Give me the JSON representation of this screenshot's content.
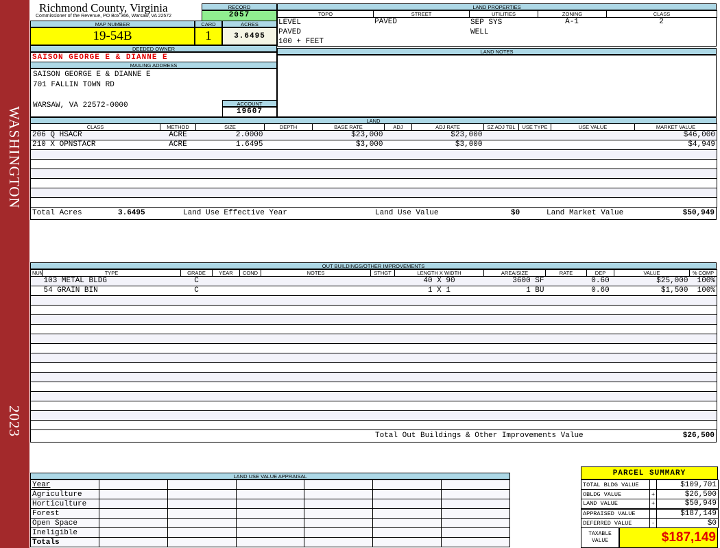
{
  "sidebar": {
    "county_label": "WASHINGTON",
    "year": "2023",
    "color": "#a3292b"
  },
  "header": {
    "title": "Richmond County, Virginia",
    "subtitle": "Commissioner of the Revenue, PO Box 366, Warsaw, VA 22572"
  },
  "record": {
    "label": "RECORD",
    "value": "2057"
  },
  "map": {
    "map_label": "MAP NUMBER",
    "map_value": "19-54B",
    "card_label": "CARD",
    "card_value": "1",
    "acres_label": "ACRES",
    "acres_value": "3.6495"
  },
  "owner": {
    "label": "DEEDED OWNER",
    "value": "SAISON GEORGE E & DIANNE E"
  },
  "mailing": {
    "label": "MAILING ADDRESS",
    "line1": "SAISON GEORGE E & DIANNE E",
    "line2": "701 FALLIN TOWN RD",
    "line3": "WARSAW, VA 22572-0000"
  },
  "account": {
    "label": "ACCOUNT",
    "value": "19607"
  },
  "land_properties": {
    "label": "LAND PROPERTIES",
    "columns": [
      "TOPO",
      "STREET",
      "UTILITIES",
      "ZONING",
      "CLASS"
    ],
    "topo": [
      "LEVEL",
      "PAVED",
      "100 + FEET"
    ],
    "street": [
      "PAVED"
    ],
    "utilities": [
      "SEP SYS",
      "WELL"
    ],
    "zoning": "A-1",
    "class": "2"
  },
  "land_notes": {
    "label": "LAND NOTES"
  },
  "land": {
    "label": "LAND",
    "columns": [
      "CLASS",
      "METHOD",
      "SIZE",
      "DEPTH",
      "BASE RATE",
      "ADJ",
      "ADJ RATE",
      "SZ ADJ TBL",
      "USE TYPE",
      "USE VALUE",
      "MARKET VALUE"
    ],
    "rows": [
      [
        "206 Q HSACR",
        "ACRE",
        "2.0000",
        "",
        "$23,000",
        "",
        "$23,000",
        "",
        "",
        "",
        "$46,000"
      ],
      [
        "210 X OPNSTACR",
        "ACRE",
        "1.6495",
        "",
        "$3,000",
        "",
        "$3,000",
        "",
        "",
        "",
        "$4,949"
      ]
    ],
    "totals": {
      "acres_label": "Total Acres",
      "acres": "3.6495",
      "effective_year_label": "Land Use Effective Year",
      "use_value_label": "Land Use Value",
      "use_value": "$0",
      "market_label": "Land Market Value",
      "market_value": "$50,949"
    }
  },
  "outbuildings": {
    "label": "OUT BUILDINGS/OTHER IMPROVEMENTS",
    "columns": [
      "NUM",
      "TYPE",
      "GRADE",
      "YEAR",
      "COND",
      "NOTES",
      "STHGT",
      "LENGTH X WIDTH",
      "AREA/SIZE",
      "RATE",
      "DEP",
      "VALUE",
      "% COMP"
    ],
    "rows": [
      [
        "",
        "103 METAL BLDG",
        "C",
        "",
        "",
        "",
        "",
        "40 X 90",
        "3600 SF",
        "",
        "0.60",
        "$25,000",
        "100%"
      ],
      [
        "",
        "54 GRAIN BIN",
        "C",
        "",
        "",
        "",
        "",
        "1 X 1",
        "1 BU",
        "",
        "0.60",
        "$1,500",
        "100%"
      ]
    ],
    "total_label": "Total Out Buildings & Other Improvements Value",
    "total_value": "$26,500"
  },
  "land_use": {
    "label": "LAND USE VALUE APPRAISAL",
    "year_label": "Year",
    "rows": [
      "Agriculture",
      "Horticulture",
      "Forest",
      "Open Space",
      "Ineligible"
    ],
    "totals_label": "Totals"
  },
  "parcel_summary": {
    "title": "PARCEL SUMMARY",
    "rows": [
      {
        "label": "TOTAL BLDG VALUE",
        "sign": "",
        "value": "$109,701"
      },
      {
        "label": "OBLDG VALUE",
        "sign": "+",
        "value": "$26,500"
      },
      {
        "label": "LAND VALUE",
        "sign": "+",
        "value": "$50,949"
      },
      {
        "label": "APPRAISED VALUE",
        "sign": "",
        "value": "$187,149"
      },
      {
        "label": "DEFERRED VALUE",
        "sign": "-",
        "value": "$0"
      }
    ],
    "taxable_label": "TAXABLE VALUE",
    "taxable_value": "$187,149"
  }
}
